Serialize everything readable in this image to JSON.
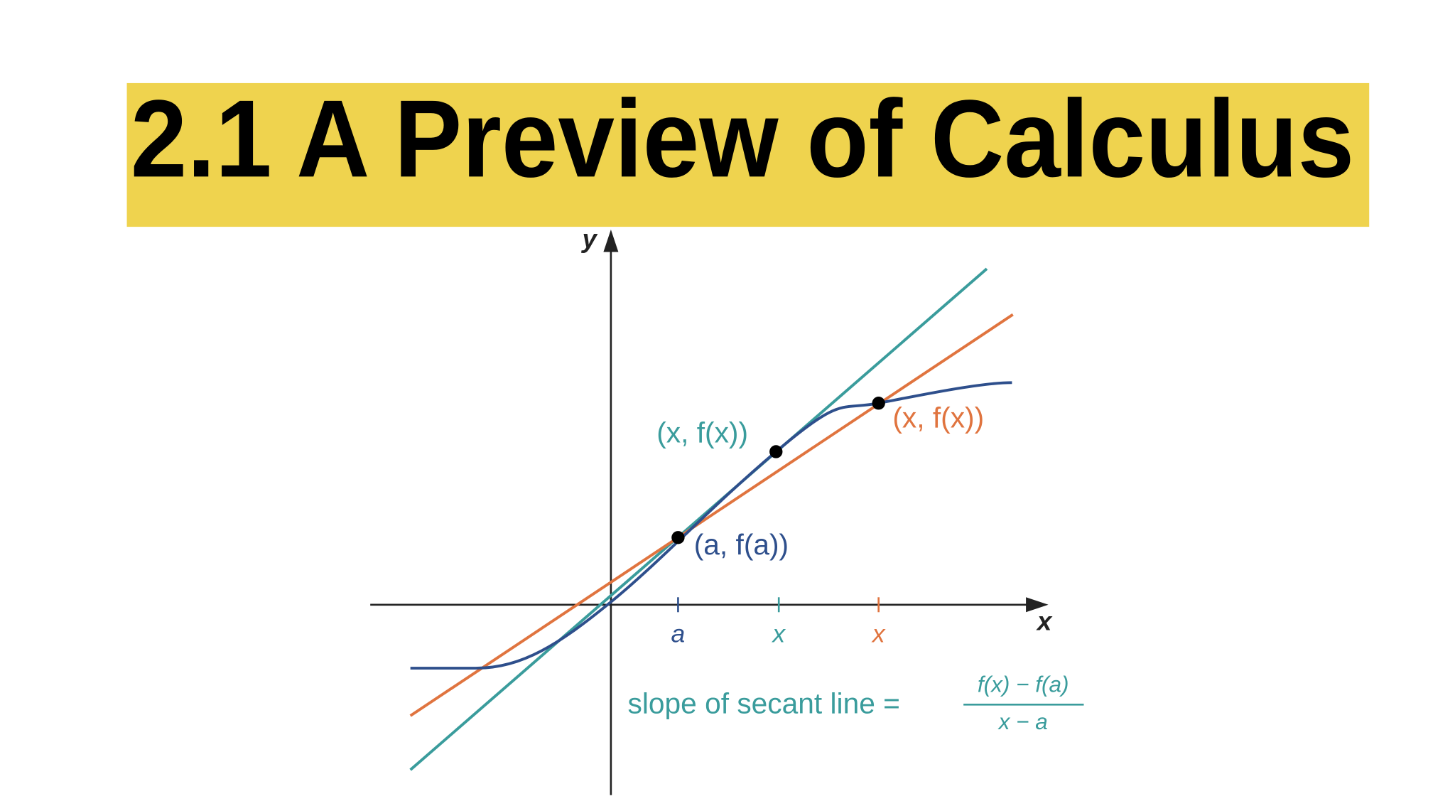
{
  "title": "2.1 A Preview of Calculus",
  "diagram": {
    "axes": {
      "x": "x",
      "y": "y"
    },
    "ticks": [
      "a",
      "x",
      "x"
    ],
    "points": [
      {
        "label": "(a, f(a))"
      },
      {
        "label": "(x, f(x))"
      },
      {
        "label": "(x, f(x))"
      }
    ],
    "formula": {
      "lhs": "slope of secant line =",
      "numerator": "f(x) − f(a)",
      "denominator": "x − a"
    }
  }
}
